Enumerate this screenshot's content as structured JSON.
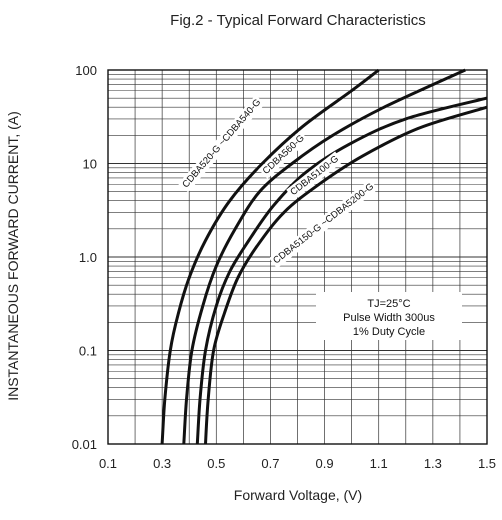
{
  "chart_data": {
    "type": "line",
    "title": "Fig.2 - Typical Forward Characteristics",
    "xlabel": "Forward Voltage, (V)",
    "ylabel": "INSTANTANEOUS FORWARD CURRENT, (A)",
    "xlim": [
      0.1,
      1.5
    ],
    "ylim": [
      0.01,
      100
    ],
    "yscale": "log",
    "grid": true,
    "x_ticks": [
      "0.1",
      "0.3",
      "0.5",
      "0.7",
      "0.9",
      "1.1",
      "1.3",
      "1.5"
    ],
    "y_ticks": [
      "0.01",
      "0.1",
      "1.0",
      "10",
      "100"
    ],
    "series": [
      {
        "name": "CDBA520-G ~CDBA540-G",
        "x": [
          0.3,
          0.31,
          0.33,
          0.36,
          0.4,
          0.46,
          0.55,
          0.67,
          0.82,
          1.0,
          1.1
        ],
        "y": [
          0.01,
          0.03,
          0.1,
          0.25,
          0.6,
          1.5,
          4,
          10,
          25,
          60,
          100
        ]
      },
      {
        "name": "CDBA560-G",
        "x": [
          0.38,
          0.39,
          0.41,
          0.45,
          0.5,
          0.57,
          0.66,
          0.78,
          0.93,
          1.12,
          1.42
        ],
        "y": [
          0.01,
          0.03,
          0.1,
          0.3,
          0.8,
          2,
          5,
          10,
          20,
          40,
          100
        ]
      },
      {
        "name": "CDBA5100-G",
        "x": [
          0.43,
          0.44,
          0.46,
          0.5,
          0.55,
          0.62,
          0.71,
          0.83,
          0.99,
          1.2,
          1.5
        ],
        "y": [
          0.01,
          0.03,
          0.1,
          0.3,
          0.7,
          1.5,
          3.5,
          8,
          16,
          30,
          50
        ]
      },
      {
        "name": "CDBA5150-G ~CDBA5200-G",
        "x": [
          0.46,
          0.47,
          0.49,
          0.53,
          0.58,
          0.65,
          0.75,
          0.88,
          1.04,
          1.25,
          1.5
        ],
        "y": [
          0.01,
          0.03,
          0.1,
          0.25,
          0.6,
          1.3,
          3,
          6,
          12,
          24,
          40
        ]
      }
    ],
    "annotation_lines": [
      "TJ=25°C",
      "Pulse Width 300us",
      "1% Duty Cycle"
    ]
  }
}
